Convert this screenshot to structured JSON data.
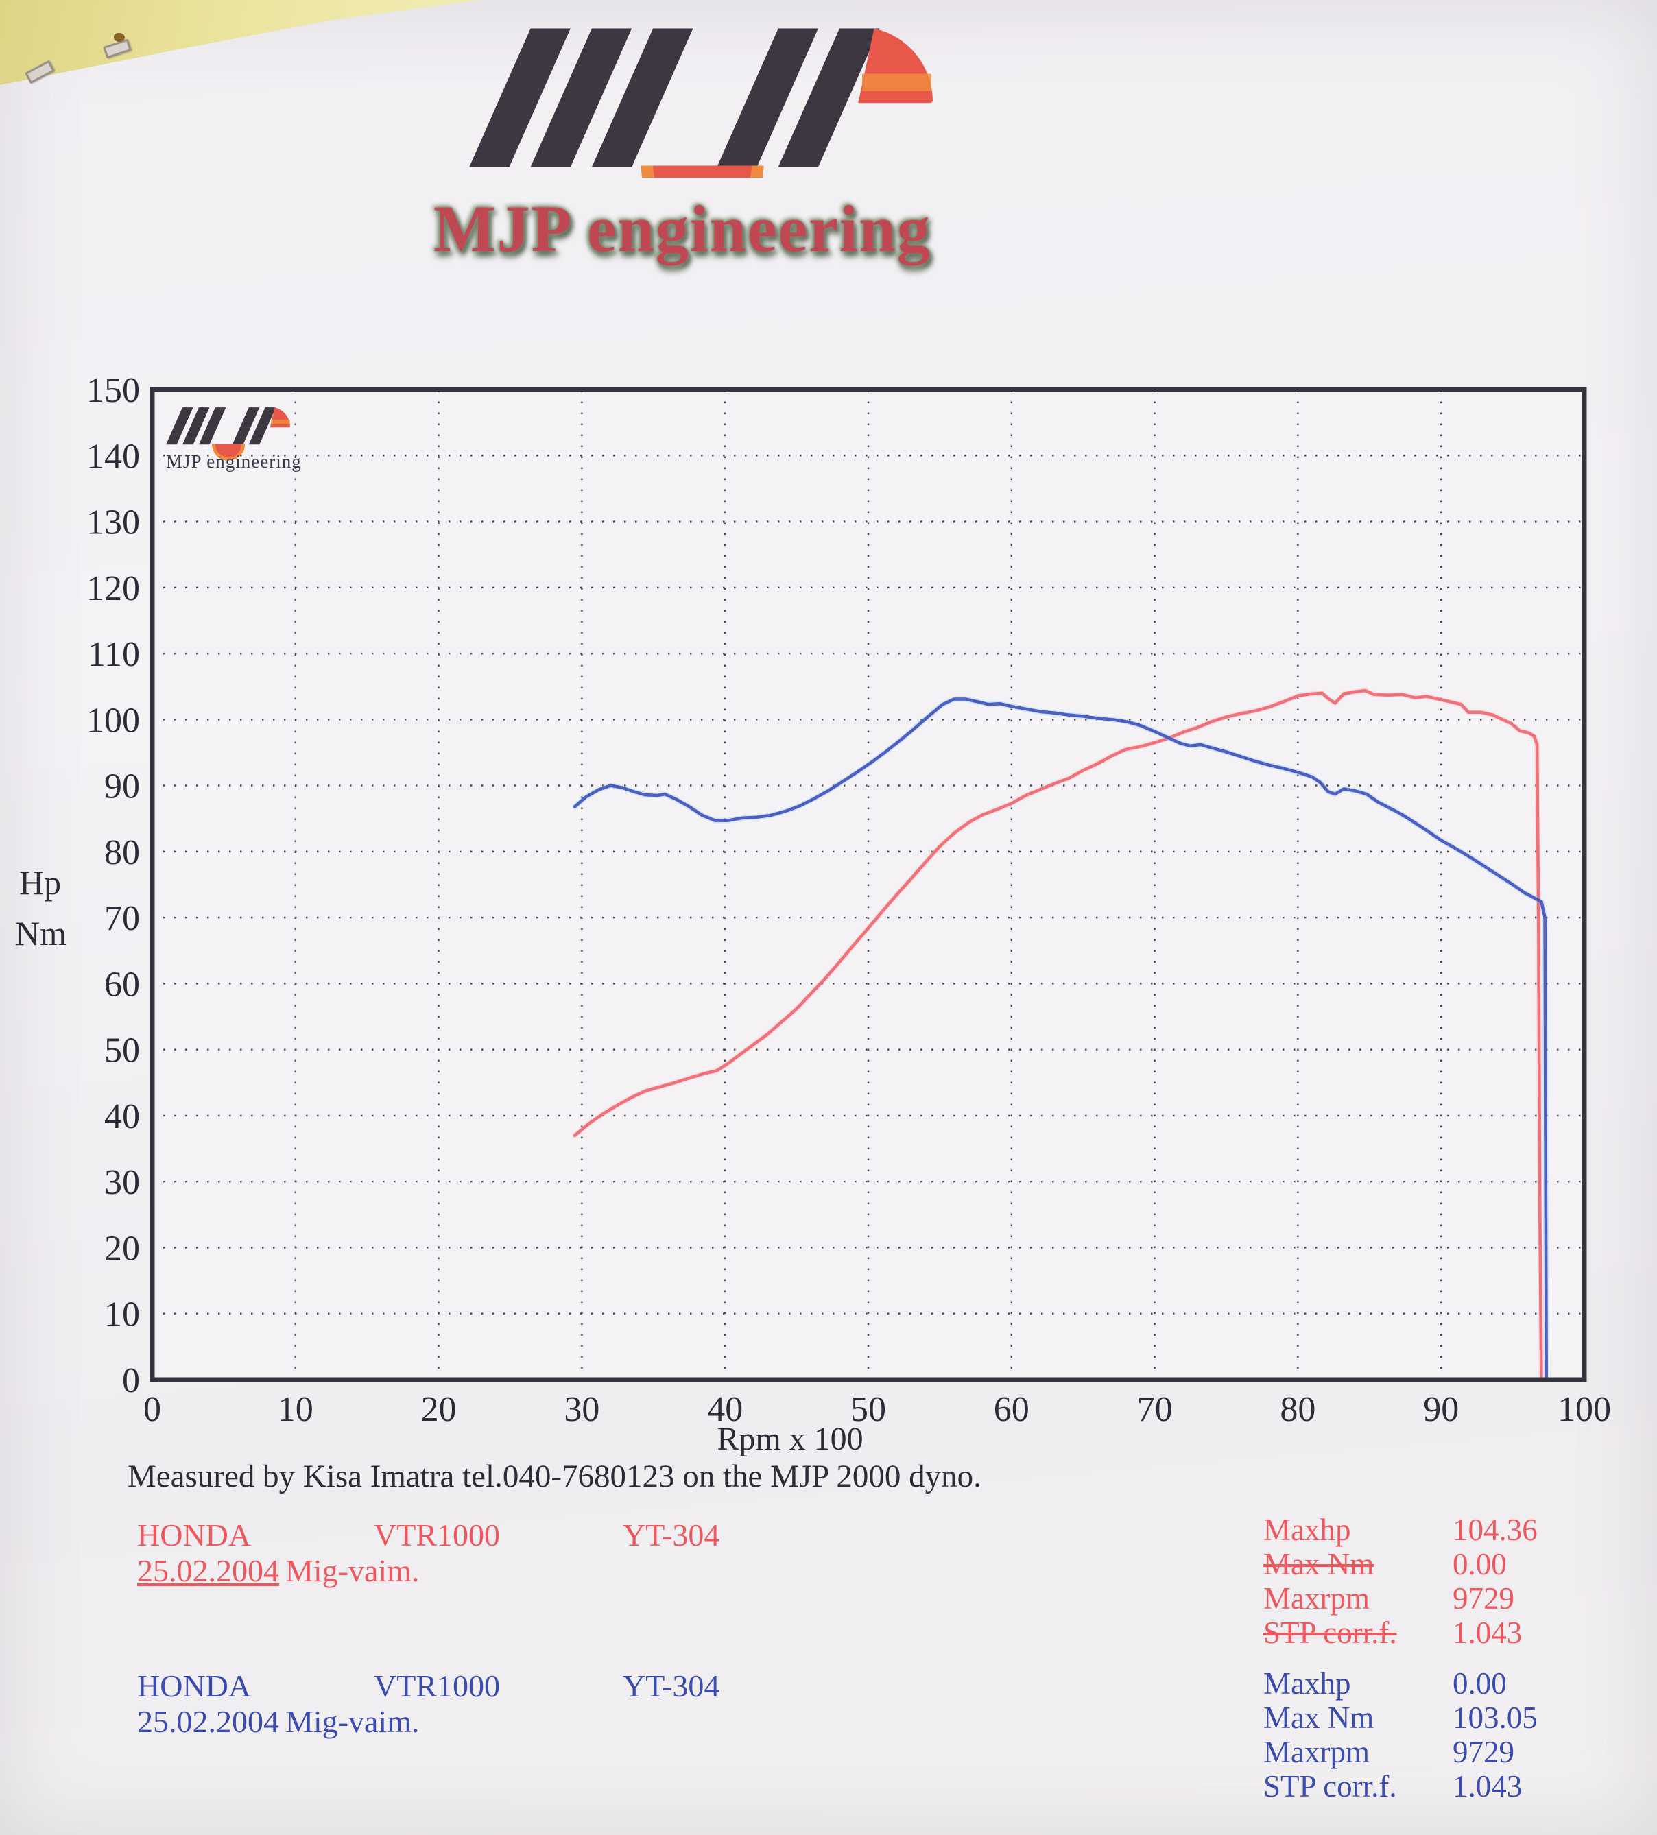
{
  "header": {
    "brand": "MJP engineering"
  },
  "icons": {
    "logo": "mjp-stripes-logo"
  },
  "caption": {
    "text": "Measured by Kisa Imatra tel.040-7680123 on the MJP 2000 dyno."
  },
  "chart_data": {
    "type": "line",
    "title": "",
    "xlabel": "Rpm x 100",
    "ylabel_line1": "Hp",
    "ylabel_line2": "Nm",
    "watermark": "MJP engineering",
    "xlim": [
      0,
      100
    ],
    "ylim": [
      0,
      150
    ],
    "x_ticks": [
      0,
      10,
      20,
      30,
      40,
      50,
      60,
      70,
      80,
      90,
      100
    ],
    "y_ticks": [
      0,
      10,
      20,
      30,
      40,
      50,
      60,
      70,
      80,
      90,
      100,
      110,
      120,
      130,
      140,
      150
    ],
    "grid": "dotted",
    "legend_position": "none",
    "series": [
      {
        "name": "Hp",
        "color": "#ee6872",
        "halo": "#ffc4c6",
        "points": [
          [
            29.5,
            37
          ],
          [
            30.5,
            38.8
          ],
          [
            31.5,
            40.3
          ],
          [
            32.5,
            41.6
          ],
          [
            33.5,
            42.8
          ],
          [
            34.5,
            43.8
          ],
          [
            35.5,
            44.4
          ],
          [
            36.5,
            45
          ],
          [
            37.5,
            45.7
          ],
          [
            38.6,
            46.4
          ],
          [
            39.4,
            46.8
          ],
          [
            40.2,
            47.9
          ],
          [
            41,
            49.2
          ],
          [
            42,
            50.8
          ],
          [
            43,
            52.4
          ],
          [
            44,
            54.3
          ],
          [
            45,
            56.2
          ],
          [
            46,
            58.5
          ],
          [
            47,
            60.8
          ],
          [
            48,
            63.3
          ],
          [
            49,
            65.9
          ],
          [
            50,
            68.4
          ],
          [
            51,
            71
          ],
          [
            52,
            73.5
          ],
          [
            53,
            75.9
          ],
          [
            54,
            78.4
          ],
          [
            55,
            80.8
          ],
          [
            56,
            82.8
          ],
          [
            57,
            84.4
          ],
          [
            58,
            85.6
          ],
          [
            59,
            86.4
          ],
          [
            60,
            87.3
          ],
          [
            61,
            88.5
          ],
          [
            62,
            89.4
          ],
          [
            63,
            90.3
          ],
          [
            64,
            91.1
          ],
          [
            65,
            92.3
          ],
          [
            66,
            93.3
          ],
          [
            67,
            94.5
          ],
          [
            68,
            95.5
          ],
          [
            69,
            95.9
          ],
          [
            70,
            96.5
          ],
          [
            71,
            97.2
          ],
          [
            72,
            98.1
          ],
          [
            73,
            98.8
          ],
          [
            74,
            99.7
          ],
          [
            75,
            100.4
          ],
          [
            76,
            100.9
          ],
          [
            77,
            101.3
          ],
          [
            78,
            101.9
          ],
          [
            79,
            102.7
          ],
          [
            80,
            103.6
          ],
          [
            81,
            103.9
          ],
          [
            81.7,
            104
          ],
          [
            82.1,
            103.2
          ],
          [
            82.6,
            102.5
          ],
          [
            83.2,
            103.9
          ],
          [
            84,
            104.2
          ],
          [
            84.7,
            104.4
          ],
          [
            85.3,
            103.8
          ],
          [
            86.3,
            103.7
          ],
          [
            87.3,
            103.8
          ],
          [
            88.2,
            103.3
          ],
          [
            89,
            103.5
          ],
          [
            89.8,
            103.1
          ],
          [
            90.6,
            102.7
          ],
          [
            91.4,
            102.3
          ],
          [
            91.9,
            101.1
          ],
          [
            92.8,
            101.1
          ],
          [
            93.6,
            100.7
          ],
          [
            94.3,
            100
          ],
          [
            94.9,
            99.4
          ],
          [
            95.5,
            98.3
          ],
          [
            96.1,
            98
          ],
          [
            96.5,
            97.5
          ],
          [
            96.7,
            96.2
          ],
          [
            96.8,
            70
          ],
          [
            96.9,
            25
          ],
          [
            97,
            0
          ]
        ]
      },
      {
        "name": "Nm",
        "color": "#4254bd",
        "halo": "#8fd2f0",
        "points": [
          [
            29.5,
            86.8
          ],
          [
            30.3,
            88.3
          ],
          [
            31.2,
            89.4
          ],
          [
            32,
            90
          ],
          [
            32.8,
            89.7
          ],
          [
            33.6,
            89.1
          ],
          [
            34.4,
            88.6
          ],
          [
            35.3,
            88.5
          ],
          [
            35.8,
            88.7
          ],
          [
            36.6,
            87.9
          ],
          [
            37.5,
            86.8
          ],
          [
            38.4,
            85.5
          ],
          [
            39.3,
            84.7
          ],
          [
            40.2,
            84.7
          ],
          [
            41.2,
            85.1
          ],
          [
            42.2,
            85.2
          ],
          [
            43.2,
            85.5
          ],
          [
            44.2,
            86.1
          ],
          [
            45.2,
            86.9
          ],
          [
            46.2,
            88
          ],
          [
            47.2,
            89.2
          ],
          [
            48.2,
            90.6
          ],
          [
            49.2,
            92
          ],
          [
            50.2,
            93.5
          ],
          [
            51.2,
            95.1
          ],
          [
            52.2,
            96.8
          ],
          [
            53.2,
            98.6
          ],
          [
            54.2,
            100.5
          ],
          [
            55.2,
            102.3
          ],
          [
            56,
            103.1
          ],
          [
            56.8,
            103.1
          ],
          [
            57.6,
            102.7
          ],
          [
            58.4,
            102.3
          ],
          [
            59.2,
            102.4
          ],
          [
            60,
            102
          ],
          [
            61,
            101.6
          ],
          [
            62,
            101.2
          ],
          [
            63,
            101
          ],
          [
            64,
            100.7
          ],
          [
            65,
            100.5
          ],
          [
            66,
            100.2
          ],
          [
            67,
            100
          ],
          [
            68,
            99.7
          ],
          [
            69,
            99.1
          ],
          [
            70,
            98.2
          ],
          [
            71,
            97.2
          ],
          [
            71.8,
            96.4
          ],
          [
            72.5,
            96
          ],
          [
            73.2,
            96.2
          ],
          [
            74,
            95.7
          ],
          [
            75,
            95.1
          ],
          [
            76,
            94.4
          ],
          [
            77,
            93.7
          ],
          [
            78,
            93.1
          ],
          [
            79,
            92.6
          ],
          [
            80,
            92
          ],
          [
            81,
            91.3
          ],
          [
            81.6,
            90.4
          ],
          [
            82.1,
            89.1
          ],
          [
            82.6,
            88.7
          ],
          [
            83.2,
            89.5
          ],
          [
            84,
            89.2
          ],
          [
            84.8,
            88.7
          ],
          [
            85.6,
            87.5
          ],
          [
            86.4,
            86.6
          ],
          [
            87.2,
            85.7
          ],
          [
            88,
            84.6
          ],
          [
            89,
            83.2
          ],
          [
            90,
            81.7
          ],
          [
            91,
            80.5
          ],
          [
            92,
            79.2
          ],
          [
            93,
            77.8
          ],
          [
            94,
            76.4
          ],
          [
            95,
            75
          ],
          [
            95.8,
            73.8
          ],
          [
            96.5,
            73
          ],
          [
            97,
            72.4
          ],
          [
            97.25,
            70
          ],
          [
            97.3,
            35
          ],
          [
            97.35,
            0
          ]
        ]
      }
    ]
  },
  "runs": {
    "red": {
      "make": "HONDA",
      "model": "VTR1000",
      "code": "YT-304",
      "date": "25.02.2004",
      "operator": "Mig-vaim.",
      "color": "#ee575e",
      "stats": [
        {
          "label": "Maxhp",
          "value": "104.36"
        },
        {
          "label": "Max Nm",
          "value": "0.00"
        },
        {
          "label": "Maxrpm",
          "value": "9729"
        },
        {
          "label": "STP corr.f.",
          "value": "1.043"
        }
      ]
    },
    "blue": {
      "make": "HONDA",
      "model": "VTR1000",
      "code": "YT-304",
      "date": "25.02.2004",
      "operator": "Mig-vaim.",
      "color": "#3c4cae",
      "stats": [
        {
          "label": "Maxhp",
          "value": "0.00"
        },
        {
          "label": "Max Nm",
          "value": "103.05"
        },
        {
          "label": "Maxrpm",
          "value": "9729"
        },
        {
          "label": "STP corr.f.",
          "value": "1.043"
        }
      ]
    }
  }
}
